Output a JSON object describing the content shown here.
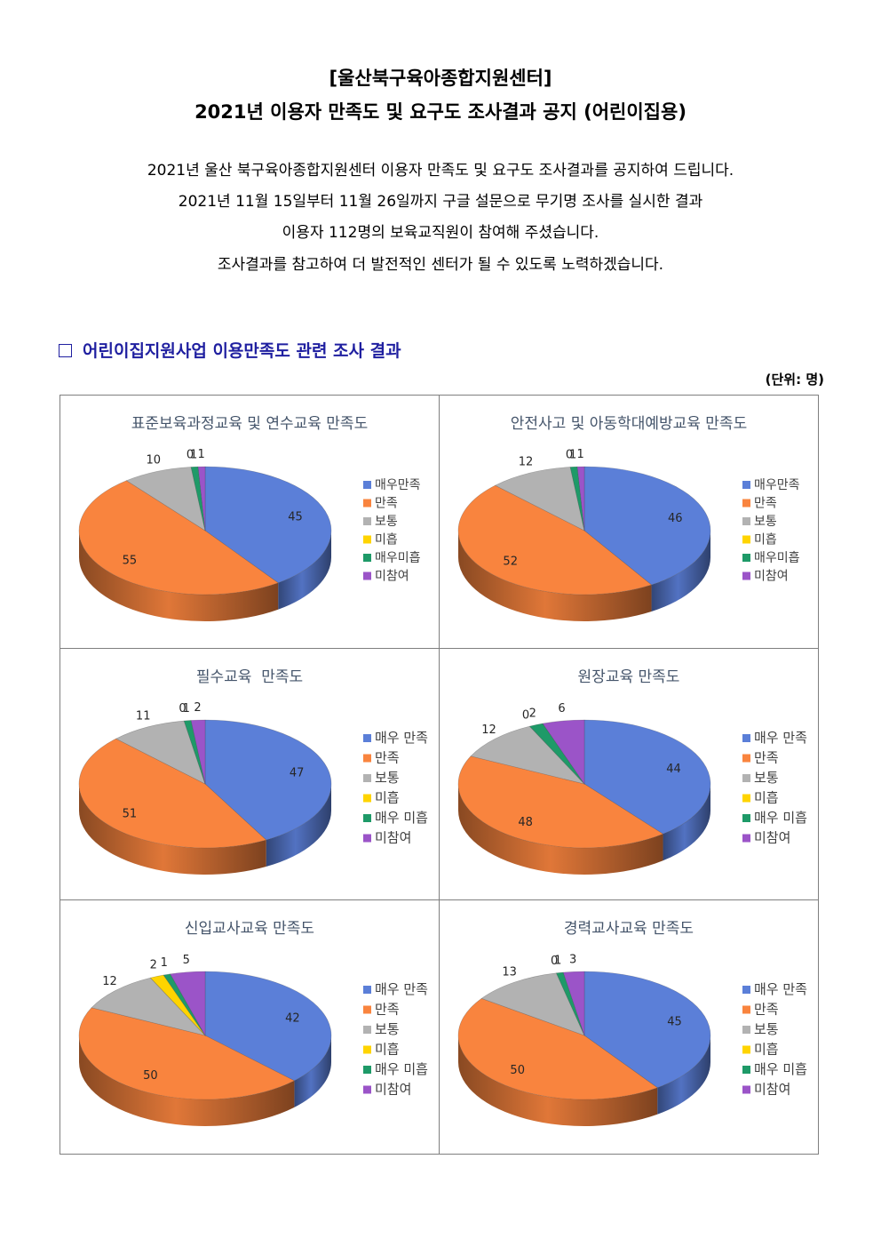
{
  "header": {
    "title_line1": "[울산북구육아종합지원센터]",
    "title_line2": "2021년 이용자 만족도 및 요구도 조사결과 공지 (어린이집용)"
  },
  "intro": {
    "line1": "2021년 울산 북구육아종합지원센터 이용자 만족도 및 요구도 조사결과를 공지하여 드립니다.",
    "line2": "2021년 11월 15일부터 11월 26일까지 구글 설문으로 무기명 조사를 실시한 결과",
    "line3": "이용자 112명의 보육교직원이 참여해 주셨습니다.",
    "line4": "조사결과를 참고하여 더 발전적인 센터가 될 수 있도록 노력하겠습니다."
  },
  "section": {
    "title": "어린이집지원사업 이용만족도 관련 조사 결과",
    "unit": "(단위: 명)"
  },
  "colors": [
    "#5B7FD8",
    "#F9843E",
    "#B2B2B2",
    "#FFD400",
    "#1E9A68",
    "#9B54C8"
  ],
  "chart_data": [
    {
      "type": "pie",
      "title": "표준보육과정교육 및 연수교육 만족도",
      "categories": [
        "매우만족",
        "만족",
        "보통",
        "미흡",
        "매우미흡",
        "미참여"
      ],
      "values": [
        45,
        55,
        10,
        0,
        1,
        1
      ],
      "legend": "right"
    },
    {
      "type": "pie",
      "title": "안전사고 및 아동학대예방교육 만족도",
      "categories": [
        "매우만족",
        "만족",
        "보통",
        "미흡",
        "매우미흡",
        "미참여"
      ],
      "values": [
        46,
        52,
        12,
        0,
        1,
        1
      ],
      "legend": "right"
    },
    {
      "type": "pie",
      "title": "필수교육  만족도",
      "categories": [
        "매우 만족",
        "만족",
        "보통",
        "미흡",
        "매우 미흡",
        "미참여"
      ],
      "values": [
        47,
        51,
        11,
        0,
        1,
        2
      ],
      "legend": "right"
    },
    {
      "type": "pie",
      "title": "원장교육 만족도",
      "categories": [
        "매우 만족",
        "만족",
        "보통",
        "미흡",
        "매우 미흡",
        "미참여"
      ],
      "values": [
        44,
        48,
        12,
        0,
        2,
        6
      ],
      "legend": "right"
    },
    {
      "type": "pie",
      "title": "신입교사교육 만족도",
      "categories": [
        "매우 만족",
        "만족",
        "보통",
        "미흡",
        "매우 미흡",
        "미참여"
      ],
      "values": [
        42,
        50,
        12,
        2,
        1,
        5
      ],
      "legend": "right"
    },
    {
      "type": "pie",
      "title": "경력교사교육 만족도",
      "categories": [
        "매우 만족",
        "만족",
        "보통",
        "미흡",
        "매우 미흡",
        "미참여"
      ],
      "values": [
        45,
        50,
        13,
        0,
        1,
        3
      ],
      "legend": "right"
    }
  ]
}
